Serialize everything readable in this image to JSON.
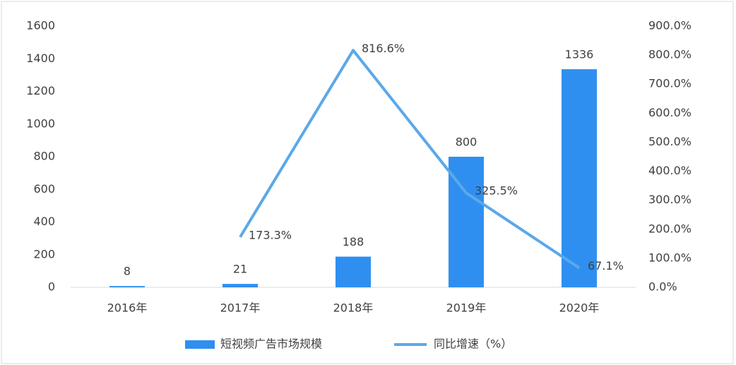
{
  "chart_data": {
    "type": "bar-line",
    "categories": [
      "2016年",
      "2017年",
      "2018年",
      "2019年",
      "2020年"
    ],
    "series": [
      {
        "name": "短视频广告市场规模",
        "type": "bar",
        "color": "#2f8ff0",
        "values": [
          8,
          21,
          188,
          800,
          1336
        ]
      },
      {
        "name": "同比增速（%）",
        "type": "line",
        "axis": "y2",
        "color": "#5ba8ea",
        "values": [
          null,
          173.3,
          816.6,
          325.5,
          67.1
        ],
        "value_labels": [
          null,
          "173.3%",
          "816.6%",
          "325.5%",
          "67.1%"
        ]
      }
    ],
    "ylim": [
      0,
      1600
    ],
    "yticks": [
      0,
      200,
      400,
      600,
      800,
      1000,
      1200,
      1400,
      1600
    ],
    "y2lim": [
      0,
      900
    ],
    "y2ticks": [
      {
        "value": 0,
        "label": "0.0%"
      },
      {
        "value": 100,
        "label": "100.0%"
      },
      {
        "value": 200,
        "label": "200.0%"
      },
      {
        "value": 300,
        "label": "300.0%"
      },
      {
        "value": 400,
        "label": "400.0%"
      },
      {
        "value": 500,
        "label": "500.0%"
      },
      {
        "value": 600,
        "label": "600.0%"
      },
      {
        "value": 700,
        "label": "700.0%"
      },
      {
        "value": 800,
        "label": "800.0%"
      },
      {
        "value": 900,
        "label": "900.0%"
      }
    ],
    "grid": false,
    "legend": "bottom"
  }
}
